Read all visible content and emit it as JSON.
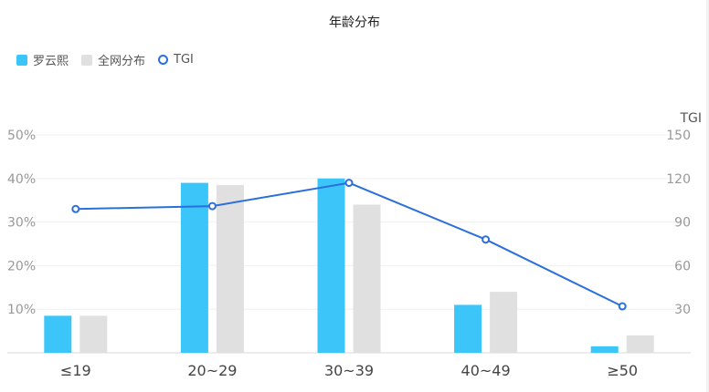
{
  "chart_data": {
    "type": "bar",
    "title": "年龄分布",
    "categories": [
      "≤19",
      "20~29",
      "30~39",
      "40~49",
      "≥50"
    ],
    "series": [
      {
        "name": "罗云熙",
        "kind": "bar",
        "axis": "left",
        "color": "#3cc5f8",
        "values": [
          8.5,
          39.0,
          40.0,
          11.0,
          1.5
        ]
      },
      {
        "name": "全网分布",
        "kind": "bar",
        "axis": "left",
        "color": "#e0e0e0",
        "values": [
          8.5,
          38.5,
          34.0,
          14.0,
          4.0
        ]
      },
      {
        "name": "TGI",
        "kind": "line",
        "axis": "right",
        "color": "#2a6fdb",
        "values": [
          99,
          101,
          117,
          78,
          32
        ]
      }
    ],
    "yleft": {
      "ticks": [
        "10%",
        "20%",
        "30%",
        "40%",
        "50%"
      ],
      "ylim": [
        0,
        50
      ]
    },
    "yright": {
      "label": "TGI",
      "ticks": [
        "30",
        "60",
        "90",
        "120",
        "150"
      ],
      "ylim": [
        0,
        150
      ]
    },
    "legend_position": "top-left",
    "grid": true
  }
}
